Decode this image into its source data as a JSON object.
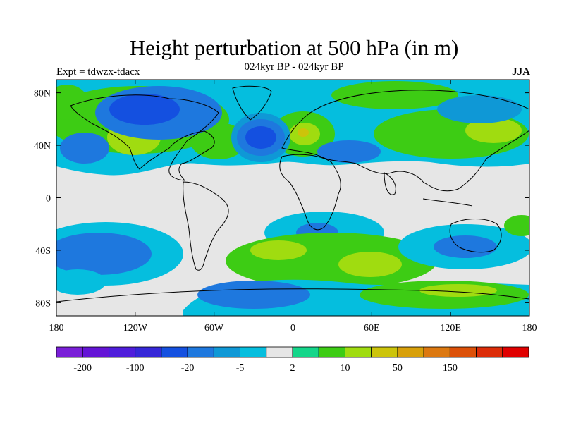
{
  "title": "Height perturbation at 500 hPa (in m)",
  "subtitle_center": "024kyr BP - 024kyr BP",
  "subtitle_left": "Expt = tdwzx-tdacx",
  "subtitle_right": "JJA",
  "map": {
    "lon_range": [
      -180,
      180
    ],
    "lat_range": [
      -90,
      90
    ],
    "x_ticks": [
      {
        "value": -180,
        "label": "180"
      },
      {
        "value": -120,
        "label": "120W"
      },
      {
        "value": -60,
        "label": "60W"
      },
      {
        "value": 0,
        "label": "0"
      },
      {
        "value": 60,
        "label": "60E"
      },
      {
        "value": 120,
        "label": "120E"
      },
      {
        "value": 180,
        "label": "180"
      }
    ],
    "y_ticks": [
      {
        "value": 80,
        "label": "80N"
      },
      {
        "value": 40,
        "label": "40N"
      },
      {
        "value": 0,
        "label": "0"
      },
      {
        "value": -40,
        "label": "40S"
      },
      {
        "value": -80,
        "label": "80S"
      }
    ]
  },
  "colorbar": {
    "colors": [
      "#7a1fd8",
      "#6414d6",
      "#4f1ddb",
      "#3627d8",
      "#1450e0",
      "#1e78de",
      "#0f98d6",
      "#05bede",
      "#e6e6e6",
      "#14d68a",
      "#3dcc14",
      "#a0dc10",
      "#ccc40a",
      "#d8a00a",
      "#dc7810",
      "#dc5008",
      "#dc2c08",
      "#e00000"
    ],
    "tick_labels": [
      {
        "index": 1,
        "label": "-200"
      },
      {
        "index": 3,
        "label": "-100"
      },
      {
        "index": 5,
        "label": "-20"
      },
      {
        "index": 7,
        "label": "-5"
      },
      {
        "index": 9,
        "label": "2"
      },
      {
        "index": 11,
        "label": "10"
      },
      {
        "index": 13,
        "label": "50"
      },
      {
        "index": 15,
        "label": "150"
      }
    ]
  }
}
